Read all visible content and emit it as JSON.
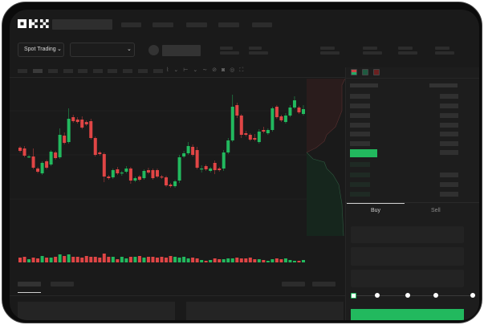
{
  "header": {
    "logo_text": "OKX",
    "nav_items": 5
  },
  "toolbar": {
    "market_select": "Spot Trading"
  },
  "order_form": {
    "tabs": [
      "Buy",
      "Sell"
    ],
    "active_tab": "Buy",
    "slider_percent": 0
  },
  "colors": {
    "up": "#22b95e",
    "down": "#e04545",
    "background": "#1a1a1a"
  },
  "icons": [
    "chevron-down-icon",
    "line-icon",
    "ruler-icon",
    "camera-icon",
    "settings-icon",
    "fullscreen-icon",
    "orderbook-both-icon",
    "orderbook-bids-icon",
    "orderbook-asks-icon"
  ],
  "chart_data": {
    "type": "candlestick",
    "ohlc": [
      [
        119,
        121,
        113,
        115
      ],
      [
        118,
        121,
        107,
        109
      ],
      [
        107,
        110,
        106,
        108
      ],
      [
        108,
        118,
        92,
        94
      ],
      [
        93,
        95,
        87,
        89
      ],
      [
        87,
        102,
        85,
        100
      ],
      [
        102,
        104,
        92,
        94
      ],
      [
        98,
        116,
        96,
        114
      ],
      [
        113,
        115,
        104,
        106
      ],
      [
        107,
        143,
        105,
        135
      ],
      [
        134,
        138,
        123,
        125
      ],
      [
        126,
        168,
        124,
        155
      ],
      [
        157,
        160,
        150,
        152
      ],
      [
        154,
        157,
        149,
        151
      ],
      [
        154,
        158,
        142,
        144
      ],
      [
        151,
        153,
        146,
        148
      ],
      [
        152,
        155,
        129,
        131
      ],
      [
        131,
        133,
        108,
        110
      ],
      [
        113,
        115,
        109,
        111
      ],
      [
        111,
        113,
        76,
        83
      ],
      [
        83,
        85,
        79,
        81
      ],
      [
        82,
        93,
        80,
        91
      ],
      [
        92,
        95,
        85,
        87
      ],
      [
        87,
        90,
        84,
        88
      ],
      [
        89,
        96,
        87,
        93
      ],
      [
        93,
        95,
        74,
        78
      ],
      [
        78,
        83,
        76,
        81
      ],
      [
        83,
        85,
        77,
        79
      ],
      [
        81,
        92,
        79,
        90
      ],
      [
        91,
        94,
        86,
        88
      ],
      [
        91,
        93,
        79,
        81
      ],
      [
        91,
        93,
        81,
        83
      ],
      [
        83,
        85,
        80,
        82
      ],
      [
        82,
        84,
        70,
        72
      ],
      [
        73,
        75,
        69,
        71
      ],
      [
        71,
        79,
        69,
        77
      ],
      [
        78,
        110,
        75,
        107
      ],
      [
        108,
        115,
        106,
        112
      ],
      [
        112,
        126,
        110,
        121
      ],
      [
        120,
        123,
        108,
        110
      ],
      [
        116,
        120,
        92,
        94
      ],
      [
        92,
        97,
        88,
        93
      ],
      [
        96,
        98,
        90,
        92
      ],
      [
        90,
        95,
        88,
        93
      ],
      [
        100,
        103,
        86,
        91
      ],
      [
        93,
        95,
        89,
        91
      ],
      [
        93,
        116,
        90,
        113
      ],
      [
        113,
        131,
        111,
        128
      ],
      [
        128,
        185,
        126,
        170
      ],
      [
        172,
        175,
        156,
        159
      ],
      [
        159,
        161,
        131,
        135
      ],
      [
        137,
        140,
        133,
        135
      ],
      [
        135,
        137,
        127,
        129
      ],
      [
        131,
        136,
        127,
        129
      ],
      [
        126,
        142,
        124,
        139
      ],
      [
        141,
        145,
        137,
        139
      ],
      [
        137,
        143,
        135,
        141
      ],
      [
        141,
        170,
        139,
        168
      ],
      [
        170,
        172,
        155,
        157
      ],
      [
        158,
        160,
        151,
        153
      ],
      [
        151,
        162,
        149,
        159
      ],
      [
        159,
        172,
        157,
        169
      ],
      [
        169,
        183,
        167,
        178
      ],
      [
        169,
        171,
        161,
        163
      ],
      [
        161,
        172,
        159,
        167
      ]
    ],
    "volume": [
      6,
      7,
      4,
      6,
      5,
      8,
      6,
      6,
      7,
      10,
      8,
      10,
      7,
      7,
      6,
      8,
      7,
      7,
      6,
      11,
      7,
      7,
      4,
      7,
      5,
      7,
      7,
      8,
      6,
      7,
      7,
      6,
      7,
      6,
      8,
      7,
      6,
      7,
      5,
      6,
      5,
      3,
      2,
      3,
      5,
      4,
      4,
      5,
      5,
      6,
      5,
      5,
      6,
      4,
      4,
      3,
      2,
      4,
      5,
      4,
      5,
      3,
      2,
      2,
      3
    ],
    "price_range": [
      10,
      205
    ],
    "grid": true
  }
}
